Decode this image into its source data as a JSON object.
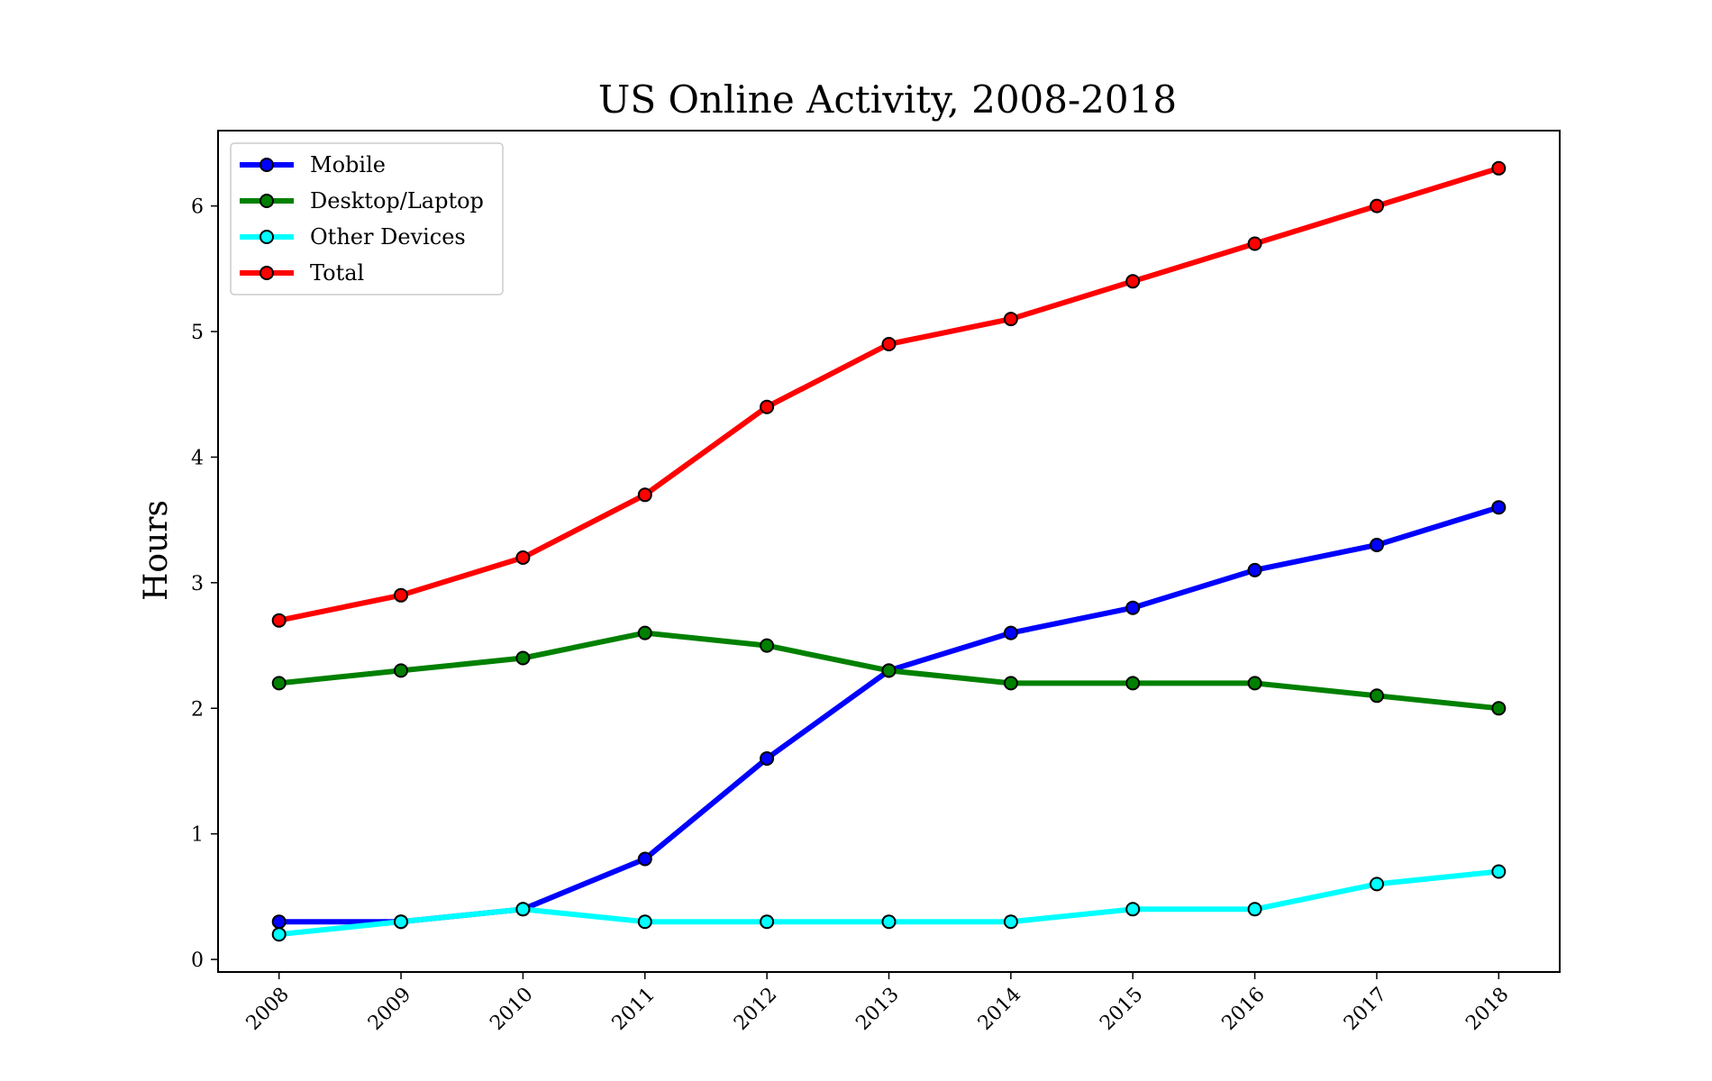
{
  "chart_data": {
    "type": "line",
    "title": "US Online Activity, 2008-2018",
    "xlabel": "",
    "ylabel": "Hours",
    "x": [
      "2008",
      "2009",
      "2010",
      "2011",
      "2012",
      "2013",
      "2014",
      "2015",
      "2016",
      "2017",
      "2018"
    ],
    "xlim": [
      2007.5,
      2018.5
    ],
    "ylim": [
      -0.1,
      6.6
    ],
    "yticks": [
      0,
      1,
      2,
      3,
      4,
      5,
      6
    ],
    "grid": false,
    "legend_position": "top-left",
    "series": [
      {
        "name": "Mobile",
        "color": "#0000ff",
        "values": [
          0.3,
          0.3,
          0.4,
          0.8,
          1.6,
          2.3,
          2.6,
          2.8,
          3.1,
          3.3,
          3.6
        ]
      },
      {
        "name": "Desktop/Laptop",
        "color": "#008000",
        "values": [
          2.2,
          2.3,
          2.4,
          2.6,
          2.5,
          2.3,
          2.2,
          2.2,
          2.2,
          2.1,
          2.0
        ]
      },
      {
        "name": "Other Devices",
        "color": "#00ffff",
        "values": [
          0.2,
          0.3,
          0.4,
          0.3,
          0.3,
          0.3,
          0.3,
          0.4,
          0.4,
          0.6,
          0.7
        ]
      },
      {
        "name": "Total",
        "color": "#ff0000",
        "values": [
          2.7,
          2.9,
          3.2,
          3.7,
          4.4,
          4.9,
          5.1,
          5.4,
          5.7,
          6.0,
          6.3
        ]
      }
    ]
  }
}
